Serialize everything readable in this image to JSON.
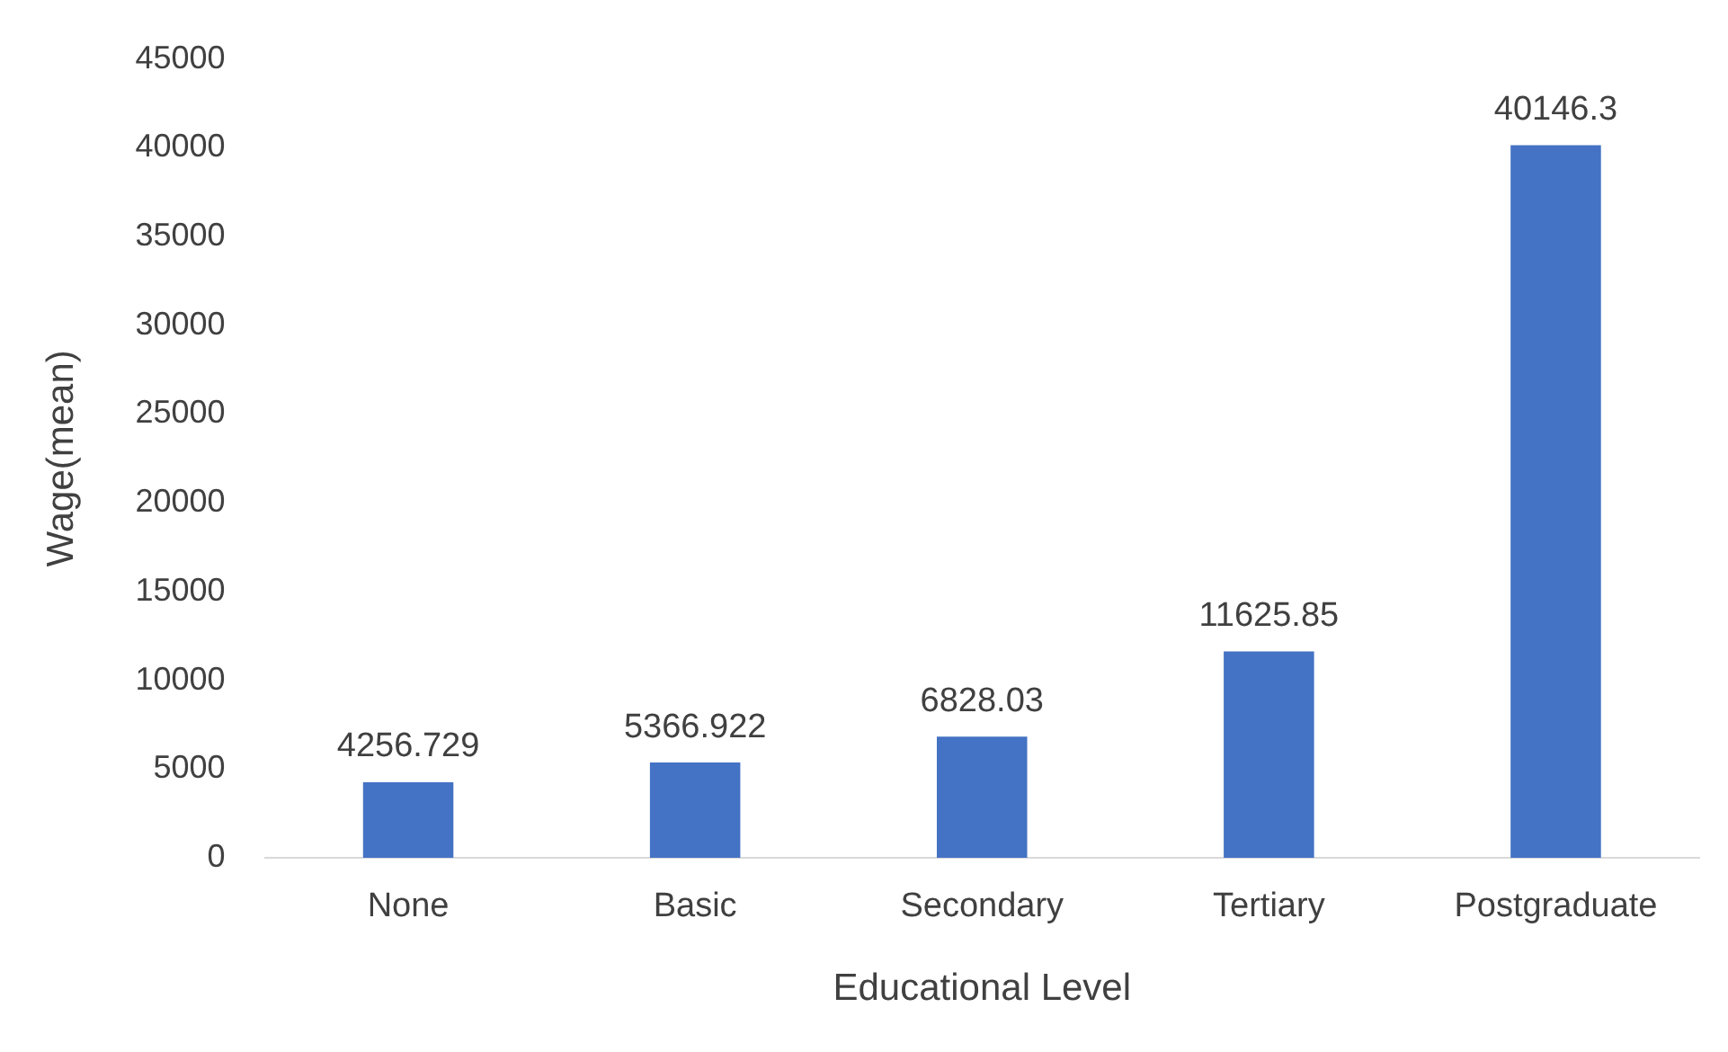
{
  "chart_data": {
    "type": "bar",
    "xlabel": "Educational Level",
    "ylabel": "Wage(mean)",
    "categories": [
      "None",
      "Basic",
      "Secondary",
      "Tertiary",
      "Postgraduate"
    ],
    "values": [
      4256.729,
      5366.922,
      6828.03,
      11625.85,
      40146.3
    ],
    "color": "#4472c4",
    "ylim": [
      0,
      45000
    ],
    "yticks": [
      0,
      5000,
      10000,
      15000,
      20000,
      25000,
      30000,
      35000,
      40000,
      45000
    ],
    "data_labels": true,
    "grid": false,
    "legend": false
  }
}
